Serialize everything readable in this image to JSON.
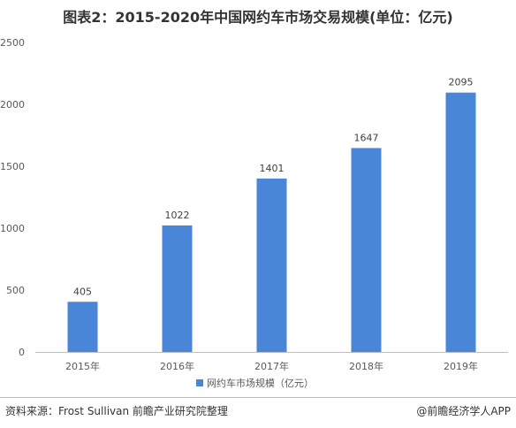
{
  "title": "图表2：2015-2020年中国网约车市场交易规模(单位：亿元)",
  "source": "资料来源：Frost Sullivan 前瞻产业研究院整理",
  "credit": "@前瞻经济学人APP",
  "colors": {
    "bar": "#4a86d8",
    "axis": "#bfbfbf"
  },
  "chart_data": {
    "type": "bar",
    "categories": [
      "2015年",
      "2016年",
      "2017年",
      "2018年",
      "2019年"
    ],
    "series": [
      {
        "name": "网约车市场规模（亿元）",
        "values": [
          405,
          1022,
          1401,
          1647,
          2095
        ]
      }
    ],
    "ylim": [
      0,
      2500
    ],
    "yticks": [
      0,
      500,
      1000,
      1500,
      2000,
      2500
    ],
    "ytick_labels": [
      "0",
      "500",
      "1000",
      "1500",
      "2000",
      "2500"
    ],
    "data_labels": [
      "405",
      "1022",
      "1401",
      "1647",
      "2095"
    ],
    "grid": false,
    "legend_position": "bottom"
  }
}
